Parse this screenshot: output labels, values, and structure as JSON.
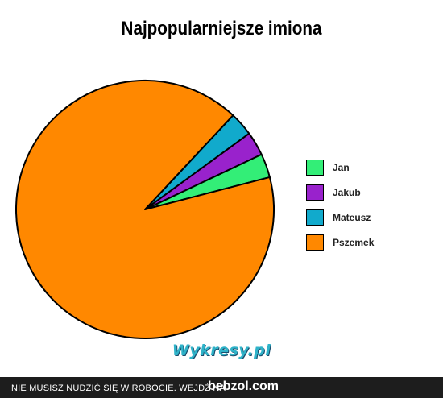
{
  "chart_data": {
    "type": "pie",
    "title": "Najpopularniejsze imiona",
    "categories": [
      "Jan",
      "Jakub",
      "Mateusz",
      "Pszemek"
    ],
    "values": [
      3,
      3,
      3,
      91
    ],
    "unit": "",
    "legend_position": "right",
    "colors": [
      "#33ee77",
      "#9922cc",
      "#11aacc",
      "#ff8800"
    ]
  },
  "watermark": "Wykresy.pl",
  "footer": {
    "text": "NIE MUSISZ NUDZIĆ SIĘ W ROBOCIE. WEJDŹ NA",
    "brand": "bebzol.com"
  },
  "icons": {
    "logo": "wykresy-logo"
  }
}
